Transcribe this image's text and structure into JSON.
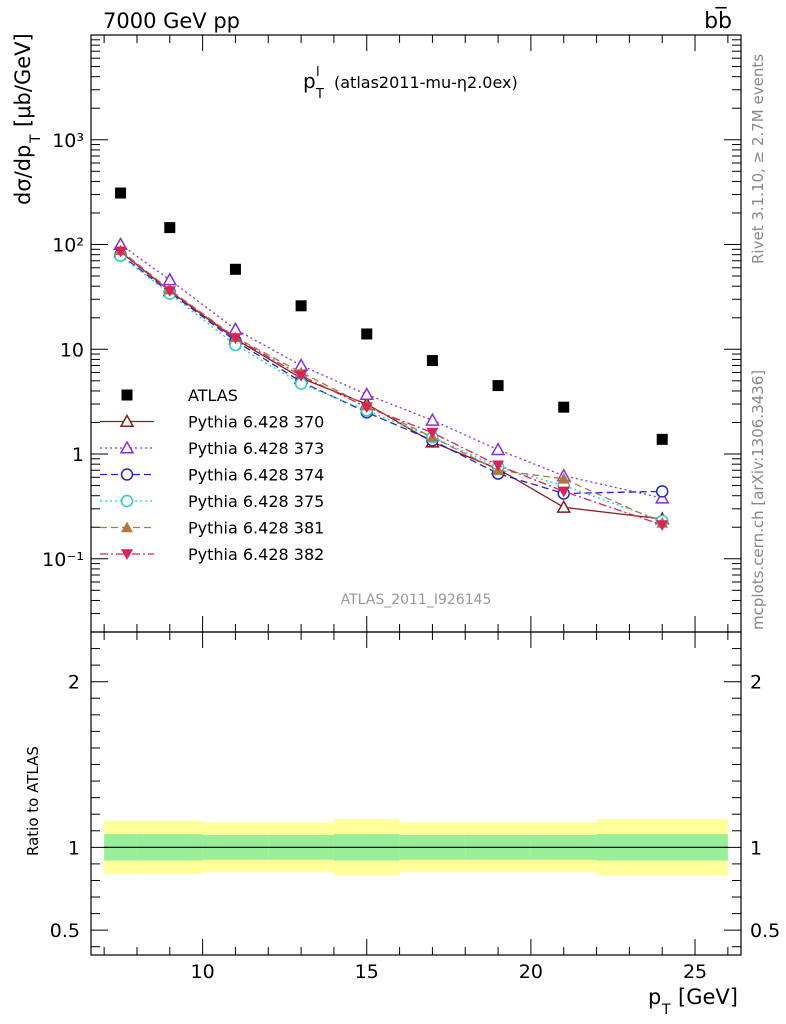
{
  "header": {
    "energy": "7000 GeV pp",
    "process": "bb̅"
  },
  "side_labels": {
    "rivet": "Rivet 3.1.10, ≥ 2.7M events",
    "mcplots": "mcplots.cern.ch [arXiv:1306.3436]"
  },
  "chart_data": {
    "type": "scatter",
    "title": "p",
    "title_sup": "l",
    "title_sub": "T",
    "title_suffix": "(atlas2011-mu-η2.0ex)",
    "analysis_id": "ATLAS_2011_I926145",
    "ylabel_main": "dσ/dp",
    "ylabel_sub": "T",
    "ylabel_unit": "[μb/GeV]",
    "ylabel_ratio": "Ratio to ATLAS",
    "xlabel": "p",
    "xlabel_sub": "T",
    "xlabel_unit": "[GeV]",
    "x_range": [
      6.6,
      26.4
    ],
    "y_range_main": [
      0.02,
      10000
    ],
    "y_scale_main": "log",
    "y_range_ratio": [
      0.35,
      2.3
    ],
    "x_ticks": [
      "10",
      "15",
      "20",
      "25"
    ],
    "y_ticks_main": [
      "10⁻¹",
      "1",
      "10",
      "10²",
      "10³"
    ],
    "y_ticks_ratio": [
      "0.5",
      "1",
      "2"
    ],
    "x": [
      7.5,
      9,
      11,
      13,
      15,
      17,
      19,
      21,
      24
    ],
    "bin_edges": [
      7,
      8,
      10,
      12,
      14,
      16,
      18,
      20,
      22,
      26
    ],
    "legend_position": "center-left",
    "series": [
      {
        "name": "ATLAS",
        "color": "#000000",
        "marker": "square",
        "dash": "solid",
        "values": [
          310,
          145,
          58,
          26,
          14,
          7.8,
          4.5,
          2.8,
          1.38
        ]
      },
      {
        "name": "Pythia 6.428 370",
        "color": "#8b1a1a",
        "marker": "triangle-open",
        "dash": "solid",
        "values": [
          85,
          36,
          12.5,
          5.3,
          3.0,
          1.3,
          0.72,
          0.31,
          0.24
        ]
      },
      {
        "name": "Pythia 6.428 373",
        "color": "#8a2be2",
        "marker": "triangle-open",
        "dash": "dotted",
        "values": [
          100,
          46,
          15.5,
          7.0,
          3.7,
          2.1,
          1.1,
          0.62,
          0.38
        ]
      },
      {
        "name": "Pythia 6.428 374",
        "color": "#2222cc",
        "marker": "circle-open",
        "dash": "dashed",
        "values": [
          80,
          35,
          12.0,
          4.9,
          2.5,
          1.35,
          0.65,
          0.42,
          0.44
        ]
      },
      {
        "name": "Pythia 6.428 375",
        "color": "#20d0c0",
        "marker": "circle-open",
        "dash": "dotted",
        "values": [
          78,
          34,
          11.0,
          4.7,
          2.6,
          1.45,
          0.75,
          0.5,
          0.23
        ]
      },
      {
        "name": "Pythia 6.428 381",
        "color": "#b07840",
        "marker": "triangle",
        "dash": "dashed",
        "values": [
          88,
          37,
          13.0,
          6.0,
          2.9,
          1.45,
          0.7,
          0.58,
          0.22
        ]
      },
      {
        "name": "Pythia 6.428 382",
        "color": "#dd2255",
        "marker": "triangle-down",
        "dash": "dashdot",
        "values": [
          86,
          36,
          12.8,
          5.6,
          2.8,
          1.6,
          0.78,
          0.44,
          0.21
        ]
      }
    ],
    "error_band_ratio": {
      "inner": [
        0.08,
        0.08,
        0.075,
        0.075,
        0.08,
        0.075,
        0.075,
        0.075,
        0.08
      ],
      "outer": [
        0.16,
        0.16,
        0.15,
        0.15,
        0.17,
        0.15,
        0.15,
        0.15,
        0.17
      ],
      "inner_color": "#99ee99",
      "outer_color": "#ffff99"
    }
  }
}
